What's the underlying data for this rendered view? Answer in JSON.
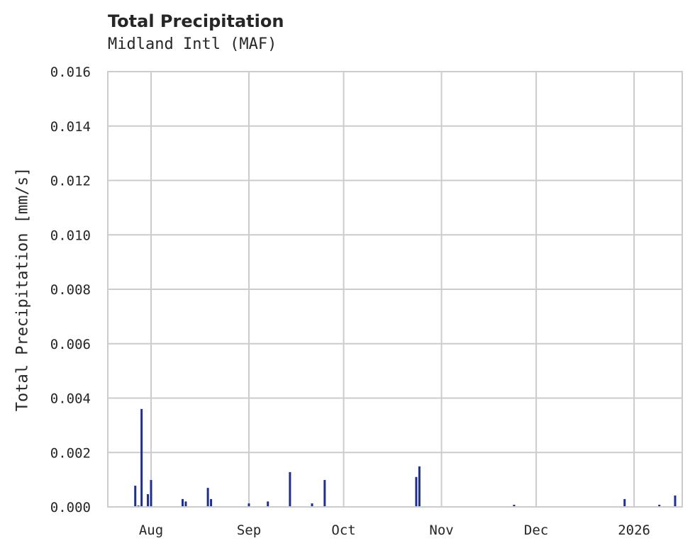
{
  "chart_data": {
    "type": "bar",
    "title": "Total Precipitation",
    "subtitle": "Midland Intl (MAF)",
    "xlabel": "",
    "ylabel": "Total Precipitation [mm/s]",
    "ylim": [
      0,
      0.016
    ],
    "yticks": [
      "0.000",
      "0.002",
      "0.004",
      "0.006",
      "0.008",
      "0.010",
      "0.012",
      "0.014",
      "0.016"
    ],
    "xticks": [
      {
        "label": "Aug",
        "date": "2025-08-01"
      },
      {
        "label": "Sep",
        "date": "2025-09-01"
      },
      {
        "label": "Oct",
        "date": "2025-10-01"
      },
      {
        "label": "Nov",
        "date": "2025-11-01"
      },
      {
        "label": "Dec",
        "date": "2025-12-01"
      },
      {
        "label": "2026",
        "date": "2026-01-01"
      }
    ],
    "xlim": [
      "2025-07-18",
      "2026-01-15"
    ],
    "grid": true,
    "bar_color": "#1f2f8f",
    "series": [
      {
        "name": "Total Precipitation",
        "points": [
          {
            "date": "2025-07-27",
            "value": 0.00078
          },
          {
            "date": "2025-07-28",
            "value": 5e-05
          },
          {
            "date": "2025-07-29",
            "value": 0.0036
          },
          {
            "date": "2025-07-31",
            "value": 0.00047
          },
          {
            "date": "2025-08-01",
            "value": 0.00099
          },
          {
            "date": "2025-08-11",
            "value": 0.00029
          },
          {
            "date": "2025-08-12",
            "value": 0.0002
          },
          {
            "date": "2025-08-19",
            "value": 0.0007
          },
          {
            "date": "2025-08-20",
            "value": 0.00029
          },
          {
            "date": "2025-09-01",
            "value": 0.00013
          },
          {
            "date": "2025-09-07",
            "value": 0.0002
          },
          {
            "date": "2025-09-14",
            "value": 0.00128
          },
          {
            "date": "2025-09-21",
            "value": 0.00013
          },
          {
            "date": "2025-09-25",
            "value": 0.00099
          },
          {
            "date": "2025-10-24",
            "value": 0.0011
          },
          {
            "date": "2025-10-25",
            "value": 0.00149
          },
          {
            "date": "2025-11-24",
            "value": 8e-05
          },
          {
            "date": "2025-12-29",
            "value": 0.00029
          },
          {
            "date": "2026-01-09",
            "value": 8e-05
          },
          {
            "date": "2026-01-14",
            "value": 0.00042
          }
        ]
      }
    ]
  }
}
